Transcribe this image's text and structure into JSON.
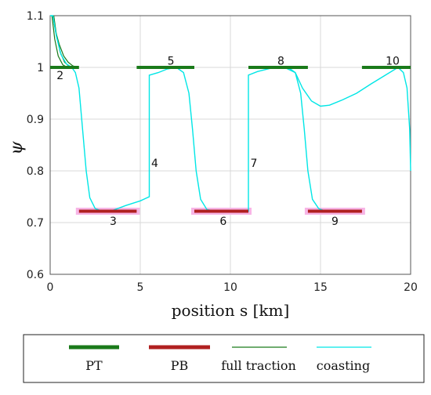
{
  "chart_data": {
    "type": "line",
    "xlabel": "position s [km]",
    "ylabel": "ψ",
    "xlim": [
      0,
      20
    ],
    "ylim": [
      0.6,
      1.1
    ],
    "grid": true,
    "xticks": [
      "0",
      "5",
      "10",
      "15",
      "20"
    ],
    "yticks": [
      "0.6",
      "0.7",
      "0.8",
      "0.9",
      "1",
      "1.1"
    ],
    "legend": {
      "position": "bottom",
      "entries": [
        {
          "label": "PT",
          "color": "#1a7a1a",
          "style": "thick"
        },
        {
          "label": "PB",
          "color": "#b02020",
          "style": "thick"
        },
        {
          "label": "full traction",
          "color": "#1a7a1a",
          "style": "thin"
        },
        {
          "label": "coasting",
          "color": "#00e6e6",
          "style": "thin"
        }
      ]
    },
    "colors": {
      "pt": "#1a7a1a",
      "pb": "#b02020",
      "pb_highlight": "#f7b5e6",
      "full_traction": "#1a7a1a",
      "coasting": "#00e6e6"
    },
    "pt_segments": [
      {
        "x": [
          0.0,
          1.6
        ],
        "y": 1.0
      },
      {
        "x": [
          4.8,
          8.0
        ],
        "y": 1.0
      },
      {
        "x": [
          11.0,
          14.3
        ],
        "y": 1.0
      },
      {
        "x": [
          17.3,
          20.0
        ],
        "y": 1.0
      }
    ],
    "pb_segments": [
      {
        "x": [
          1.6,
          4.8
        ],
        "y": 0.722
      },
      {
        "x": [
          8.0,
          11.0
        ],
        "y": 0.722
      },
      {
        "x": [
          14.3,
          17.3
        ],
        "y": 0.722
      }
    ],
    "full_traction_curves": [
      [
        [
          0.15,
          1.1
        ],
        [
          0.3,
          1.07
        ],
        [
          0.5,
          1.045
        ],
        [
          0.75,
          1.022
        ],
        [
          1.0,
          1.01
        ],
        [
          1.25,
          1.003
        ],
        [
          1.5,
          1.0
        ]
      ],
      [
        [
          0.2,
          1.1
        ],
        [
          0.35,
          1.063
        ],
        [
          0.55,
          1.03
        ],
        [
          0.8,
          1.01
        ],
        [
          1.05,
          1.002
        ],
        [
          1.3,
          1.0
        ]
      ],
      [
        [
          0.1,
          1.1
        ],
        [
          0.25,
          1.055
        ],
        [
          0.45,
          1.022
        ],
        [
          0.7,
          1.005
        ],
        [
          0.95,
          1.0
        ]
      ]
    ],
    "coasting_curves": [
      [
        [
          0.0,
          1.1
        ],
        [
          0.15,
          1.1
        ],
        [
          0.35,
          1.06
        ],
        [
          0.6,
          1.025
        ],
        [
          0.9,
          1.007
        ],
        [
          1.2,
          1.0
        ],
        [
          1.4,
          0.99
        ],
        [
          1.6,
          0.96
        ],
        [
          1.8,
          0.88
        ],
        [
          2.0,
          0.8
        ],
        [
          2.2,
          0.748
        ],
        [
          2.5,
          0.727
        ],
        [
          2.9,
          0.722
        ],
        [
          3.5,
          0.724
        ],
        [
          4.2,
          0.733
        ],
        [
          5.0,
          0.742
        ],
        [
          5.5,
          0.75
        ],
        [
          5.5,
          0.985
        ],
        [
          6.0,
          0.99
        ],
        [
          6.5,
          0.997
        ],
        [
          7.0,
          1.0
        ],
        [
          7.4,
          0.99
        ],
        [
          7.7,
          0.95
        ],
        [
          7.9,
          0.88
        ],
        [
          8.1,
          0.8
        ],
        [
          8.35,
          0.745
        ],
        [
          8.7,
          0.725
        ],
        [
          9.2,
          0.722
        ],
        [
          10.0,
          0.722
        ],
        [
          11.0,
          0.722
        ],
        [
          11.0,
          0.985
        ],
        [
          11.5,
          0.992
        ],
        [
          12.2,
          0.998
        ],
        [
          13.0,
          1.0
        ],
        [
          13.6,
          0.99
        ],
        [
          13.9,
          0.95
        ],
        [
          14.1,
          0.88
        ],
        [
          14.3,
          0.8
        ],
        [
          14.55,
          0.745
        ],
        [
          14.9,
          0.727
        ],
        [
          15.3,
          0.722
        ],
        [
          16.2,
          0.722
        ],
        [
          17.0,
          0.722
        ]
      ],
      [
        [
          13.2,
          1.0
        ],
        [
          13.6,
          0.99
        ],
        [
          14.0,
          0.96
        ],
        [
          14.5,
          0.935
        ],
        [
          15.0,
          0.925
        ],
        [
          15.5,
          0.927
        ],
        [
          16.2,
          0.937
        ],
        [
          17.0,
          0.95
        ],
        [
          17.8,
          0.968
        ],
        [
          18.6,
          0.985
        ],
        [
          19.3,
          1.0
        ],
        [
          19.6,
          0.99
        ],
        [
          19.8,
          0.96
        ],
        [
          19.95,
          0.88
        ],
        [
          20.0,
          0.8
        ]
      ]
    ],
    "annotations": [
      {
        "text": "2",
        "x": 0.55,
        "y": 0.985
      },
      {
        "text": "3",
        "x": 3.5,
        "y": 0.703
      },
      {
        "text": "4",
        "x": 5.8,
        "y": 0.815
      },
      {
        "text": "5",
        "x": 6.7,
        "y": 1.013
      },
      {
        "text": "6",
        "x": 9.6,
        "y": 0.703
      },
      {
        "text": "7",
        "x": 11.3,
        "y": 0.815
      },
      {
        "text": "8",
        "x": 12.8,
        "y": 1.013
      },
      {
        "text": "9",
        "x": 15.8,
        "y": 0.703
      },
      {
        "text": "10",
        "x": 19.0,
        "y": 1.013
      }
    ]
  }
}
